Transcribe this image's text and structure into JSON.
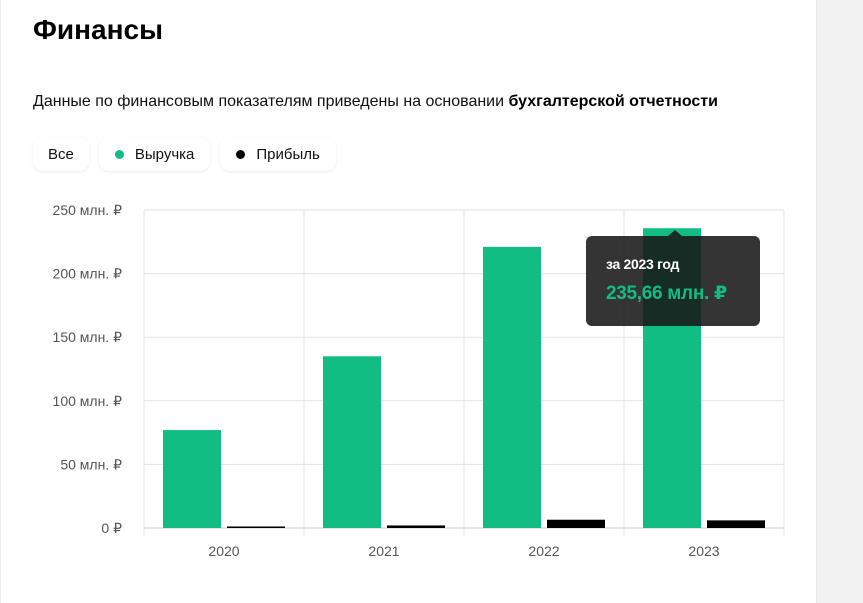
{
  "header": {
    "title": "Финансы",
    "description_prefix": "Данные по финансовым показателям приведены на основании ",
    "description_bold": "бухгалтерской отчетности"
  },
  "filters": [
    {
      "label": "Все",
      "dot_color": null
    },
    {
      "label": "Выручка",
      "dot_color": "#12bd84"
    },
    {
      "label": "Прибыль",
      "dot_color": "#000000"
    }
  ],
  "tooltip": {
    "title": "за 2023 год",
    "value": "235,66 млн. ₽"
  },
  "colors": {
    "revenue": "#12bd84",
    "profit": "#000000",
    "grid": "#e3e3e3",
    "axis_text": "#555555"
  },
  "chart_data": {
    "type": "bar",
    "categories": [
      "2020",
      "2021",
      "2022",
      "2023"
    ],
    "series": [
      {
        "name": "Выручка",
        "values": [
          77,
          135,
          221,
          235.66
        ]
      },
      {
        "name": "Прибыль",
        "values": [
          1,
          2,
          6.5,
          6
        ]
      }
    ],
    "ylim": [
      0,
      250
    ],
    "yticks": [
      0,
      50,
      100,
      150,
      200,
      250
    ],
    "ytick_labels": [
      "0 ₽",
      "50 млн. ₽",
      "100 млн. ₽",
      "150 млн. ₽",
      "200 млн. ₽",
      "250 млн. ₽"
    ],
    "grid": true,
    "legend": "top-left"
  }
}
